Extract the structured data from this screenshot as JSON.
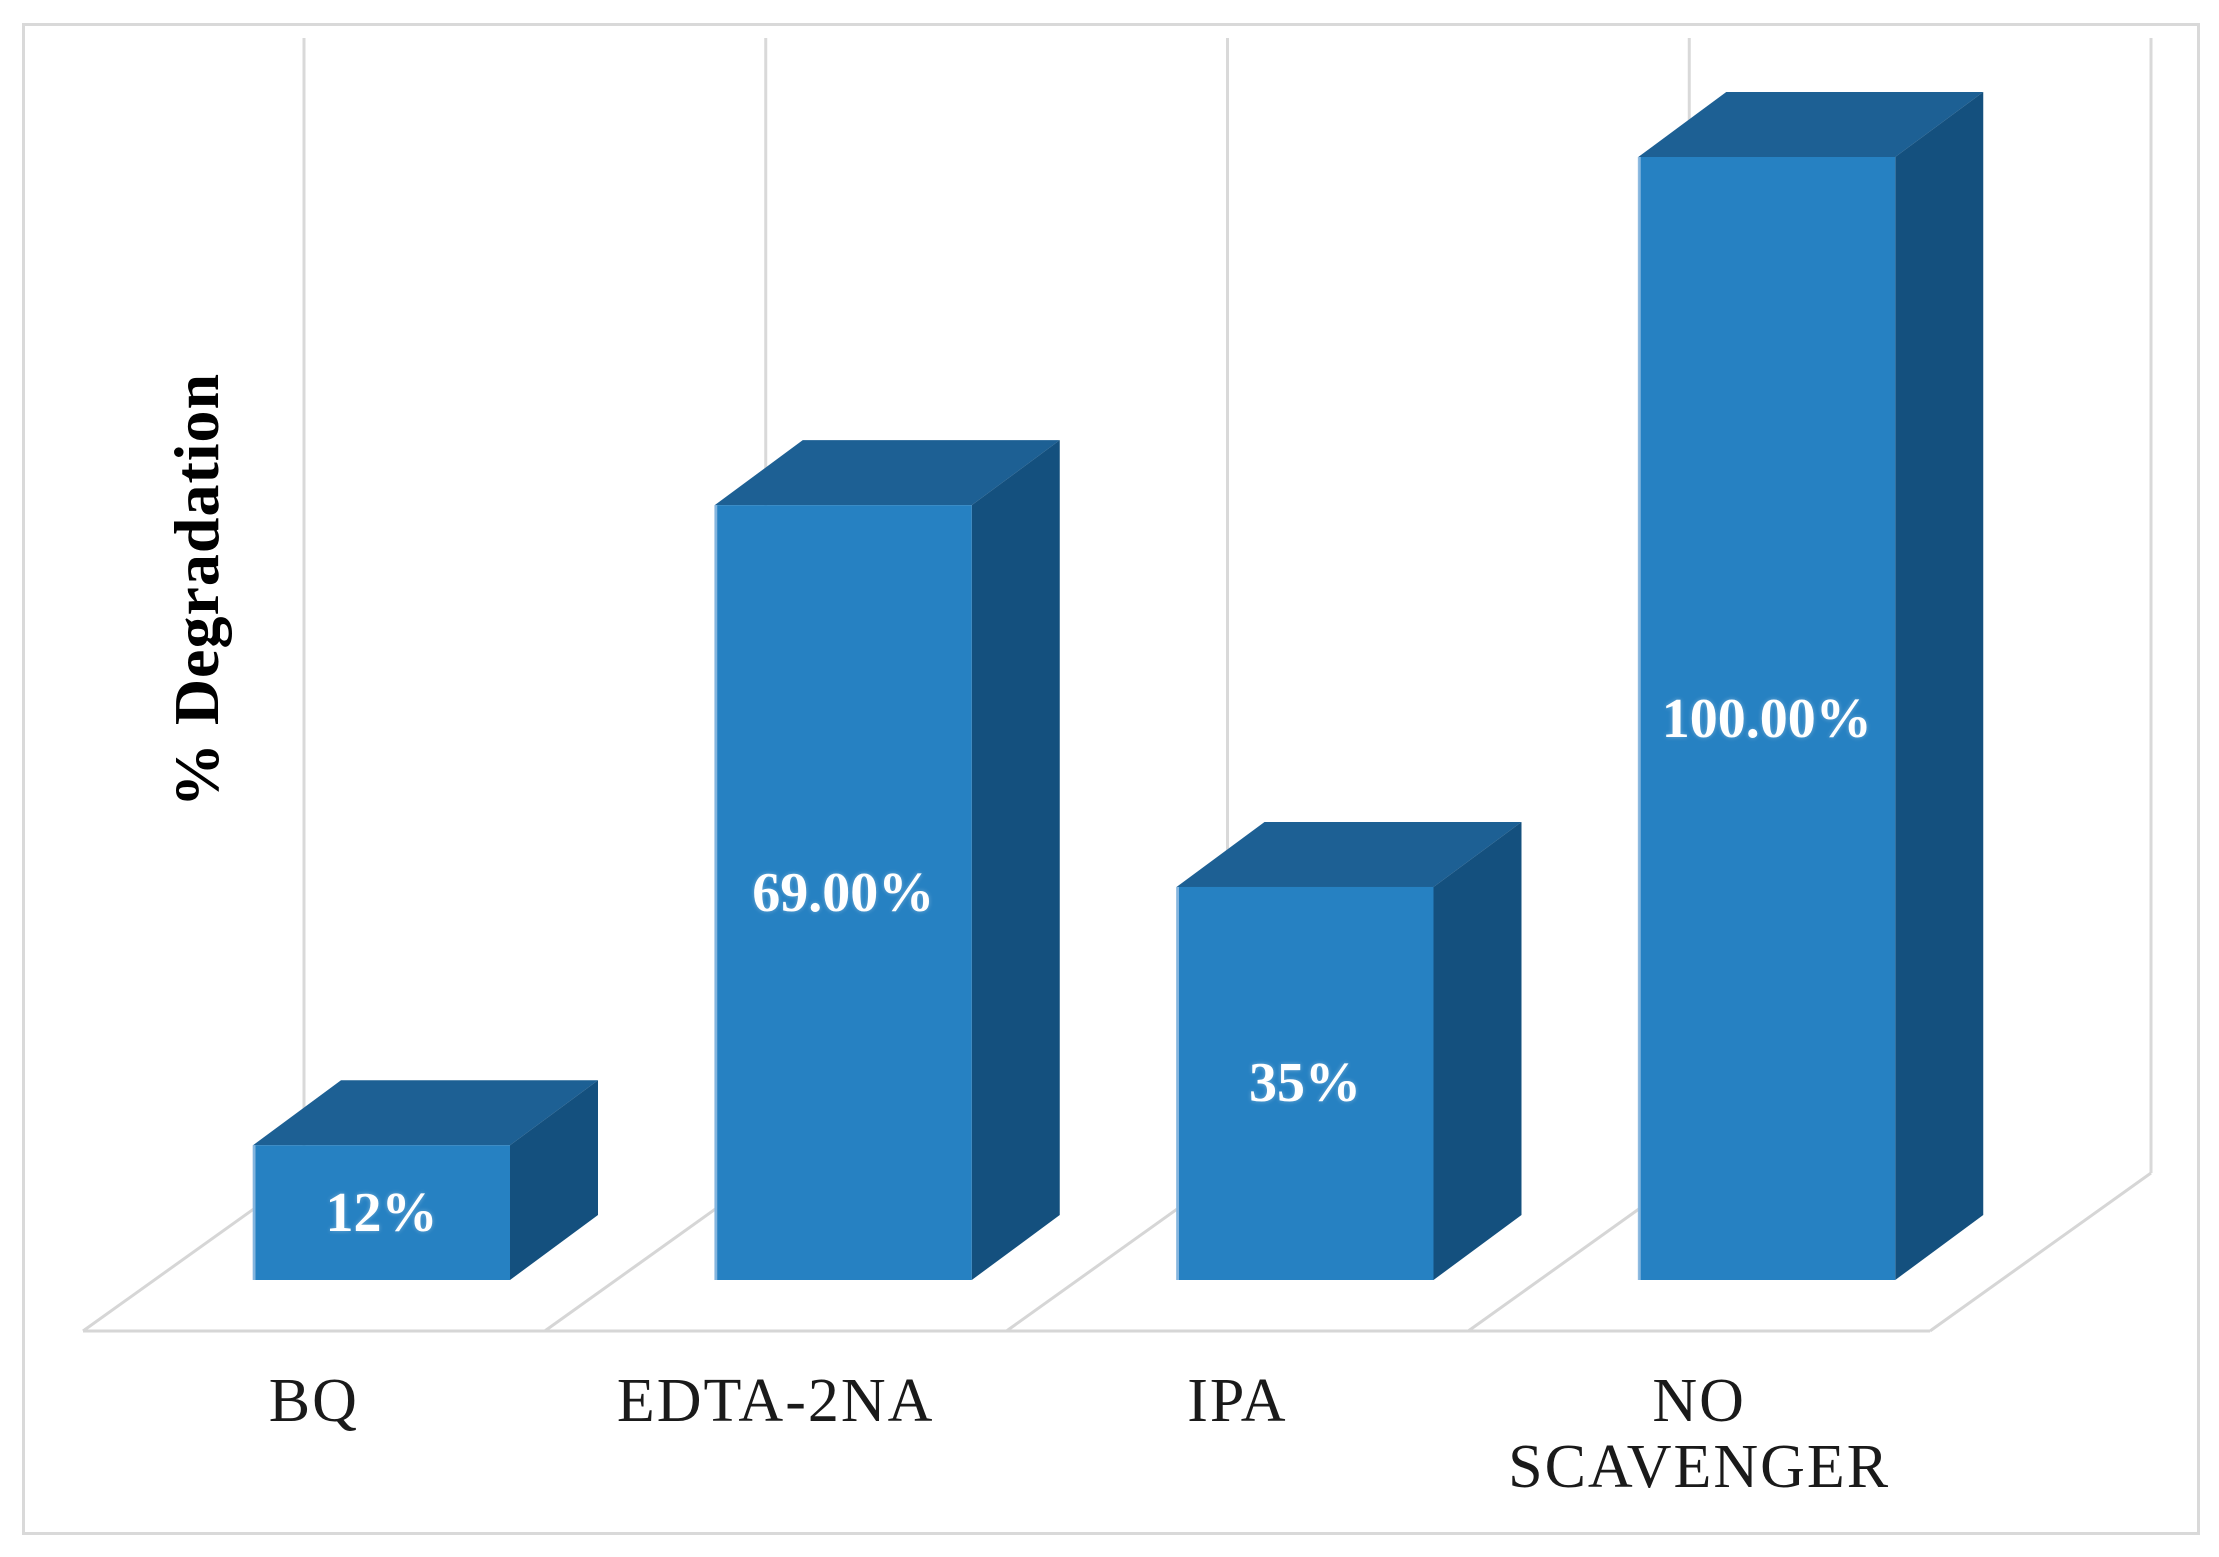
{
  "chart_data": {
    "type": "bar",
    "style": "3d-column",
    "title": "",
    "xlabel": "",
    "ylabel": "% Degradation",
    "categories": [
      "BQ",
      "EDTA-2NA",
      "IPA",
      "NO SCAVENGER"
    ],
    "values": [
      12,
      69,
      35,
      100
    ],
    "value_labels": [
      "12%",
      "69.00%",
      "35%",
      "100.00%"
    ],
    "ylim": [
      0,
      100
    ],
    "grid": "vertical-category-gridlines",
    "legend": "none",
    "colors": {
      "bar_front": "#2681C2",
      "bar_side": "#14507E",
      "bar_top": "#1D6094",
      "bar_edge_highlight": "#9CC2E5",
      "gridline": "#D9D9D9",
      "floor_line": "#D6D6D6",
      "figure_border": "#D9D9D9",
      "value_text": "#FFFFFF",
      "category_text": "#1A1A1A",
      "axis_title_text": "#000000",
      "background": "#FFFFFF"
    }
  }
}
